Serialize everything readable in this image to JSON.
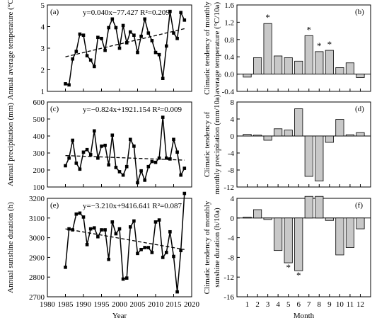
{
  "chart_data": [
    {
      "panel": "(a)",
      "type": "line",
      "ylabel": "Annual average temperature (°C)",
      "equation": "y=0.040x−77.427 R²=0.209",
      "xlim": [
        1980,
        2020
      ],
      "ylim": [
        1,
        5
      ],
      "yticks": [
        "1",
        "2",
        "3",
        "4",
        "5"
      ],
      "x": [
        1985,
        1986,
        1987,
        1988,
        1989,
        1990,
        1991,
        1992,
        1993,
        1994,
        1995,
        1996,
        1997,
        1998,
        1999,
        2000,
        2001,
        2002,
        2003,
        2004,
        2005,
        2006,
        2007,
        2008,
        2009,
        2010,
        2011,
        2012,
        2013,
        2014,
        2015,
        2016,
        2017,
        2018
      ],
      "y": [
        1.35,
        1.3,
        2.5,
        2.85,
        3.65,
        3.6,
        2.65,
        2.45,
        2.15,
        3.5,
        3.45,
        2.9,
        3.95,
        4.35,
        3.95,
        3.0,
        4.05,
        3.25,
        3.75,
        3.6,
        2.8,
        3.55,
        4.35,
        3.7,
        3.35,
        2.8,
        2.7,
        1.6,
        3.1,
        4.7,
        3.7,
        3.45,
        4.65,
        4.3
      ],
      "trend": {
        "x": [
          1985,
          2018
        ],
        "y": [
          2.6,
          3.9
        ]
      }
    },
    {
      "panel": "(b)",
      "type": "bar",
      "ylabel": "Climatic tendency of monthly average temperature (°C/10a)",
      "categories": [
        "1",
        "2",
        "3",
        "4",
        "5",
        "6",
        "7",
        "8",
        "9",
        "10",
        "11",
        "12"
      ],
      "values": [
        -0.07,
        0.38,
        1.17,
        0.42,
        0.38,
        0.3,
        0.89,
        0.52,
        0.55,
        0.15,
        0.26,
        -0.08
      ],
      "significant": [
        false,
        false,
        true,
        false,
        false,
        false,
        true,
        true,
        true,
        false,
        false,
        false
      ],
      "ylim": [
        -0.4,
        1.6
      ],
      "yticks": [
        "-0.4",
        "0.0",
        "0.4",
        "0.8",
        "1.2",
        "1.6"
      ]
    },
    {
      "panel": "(c)",
      "type": "line",
      "ylabel": "Annual precipitation (mm)",
      "equation": "y=−0.824x+1921.154 R²=0.009",
      "xlim": [
        1980,
        2020
      ],
      "ylim": [
        100,
        600
      ],
      "yticks": [
        "100",
        "200",
        "300",
        "400",
        "500",
        "600"
      ],
      "x": [
        1985,
        1986,
        1987,
        1988,
        1989,
        1990,
        1991,
        1992,
        1993,
        1994,
        1995,
        1996,
        1997,
        1998,
        1999,
        2000,
        2001,
        2002,
        2003,
        2004,
        2005,
        2006,
        2007,
        2008,
        2009,
        2010,
        2011,
        2012,
        2013,
        2014,
        2015,
        2016,
        2017,
        2018
      ],
      "y": [
        225,
        270,
        375,
        240,
        205,
        305,
        320,
        290,
        430,
        270,
        340,
        345,
        230,
        405,
        215,
        190,
        170,
        220,
        380,
        340,
        125,
        195,
        140,
        220,
        250,
        245,
        270,
        510,
        270,
        265,
        380,
        305,
        170,
        210
      ],
      "trend": {
        "x": [
          1985,
          2018
        ],
        "y": [
          285,
          258
        ]
      }
    },
    {
      "panel": "(d)",
      "type": "bar",
      "ylabel": "Climatic tendency of monthly precipitation (mm/10a)",
      "categories": [
        "1",
        "2",
        "3",
        "4",
        "5",
        "6",
        "7",
        "8",
        "9",
        "10",
        "11",
        "12"
      ],
      "values": [
        0.4,
        0.2,
        -1.0,
        1.7,
        1.4,
        6.4,
        -9.5,
        -10.6,
        -1.5,
        3.9,
        0.3,
        0.8
      ],
      "ylim": [
        -12,
        8
      ],
      "yticks": [
        "-12",
        "-8",
        "-4",
        "0",
        "4",
        "8"
      ]
    },
    {
      "panel": "(e)",
      "type": "line",
      "ylabel": "Annual sunshine duration (h)",
      "equation": "y=−3.210x+9416.641 R²=0.087",
      "xlabel": "Year",
      "xlim": [
        1980,
        2020
      ],
      "ylim": [
        2700,
        3200
      ],
      "xticks": [
        "1980",
        "1985",
        "1990",
        "1995",
        "2000",
        "2005",
        "2010",
        "2015",
        "2020"
      ],
      "yticks": [
        "2700",
        "2800",
        "2900",
        "3000",
        "3100",
        "3200"
      ],
      "x": [
        1985,
        1986,
        1987,
        1988,
        1989,
        1990,
        1991,
        1992,
        1993,
        1994,
        1995,
        1996,
        1997,
        1998,
        1999,
        2000,
        2001,
        2002,
        2003,
        2004,
        2005,
        2006,
        2007,
        2008,
        2009,
        2010,
        2011,
        2012,
        2013,
        2014,
        2015,
        2016,
        2017,
        2018
      ],
      "y": [
        2850,
        3045,
        3040,
        3120,
        3125,
        3105,
        2965,
        3045,
        3050,
        3005,
        3040,
        3040,
        2890,
        3080,
        3020,
        3045,
        2790,
        2795,
        3055,
        3085,
        2920,
        2940,
        2950,
        2950,
        2925,
        3080,
        3090,
        2900,
        2925,
        3030,
        2905,
        2725,
        2935,
        3225
      ],
      "trend": {
        "x": [
          1985,
          2018
        ],
        "y": [
          3045,
          2940
        ]
      }
    },
    {
      "panel": "(f)",
      "type": "bar",
      "ylabel": "Climatic tendency of monthly sunshine duration (h/10a)",
      "xlabel": "Month",
      "categories": [
        "1",
        "2",
        "3",
        "4",
        "5",
        "6",
        "7",
        "8",
        "9",
        "10",
        "11",
        "12"
      ],
      "values": [
        0.2,
        1.7,
        -0.3,
        -6.6,
        -9.1,
        -10.7,
        4.4,
        4.4,
        -0.5,
        -7.5,
        -6.0,
        -2.2
      ],
      "significant": [
        false,
        false,
        false,
        false,
        true,
        true,
        false,
        false,
        false,
        false,
        false,
        false
      ],
      "ylim": [
        -16,
        4
      ],
      "yticks": [
        "-16",
        "-12",
        "-8",
        "-4",
        "0",
        "4"
      ]
    }
  ]
}
